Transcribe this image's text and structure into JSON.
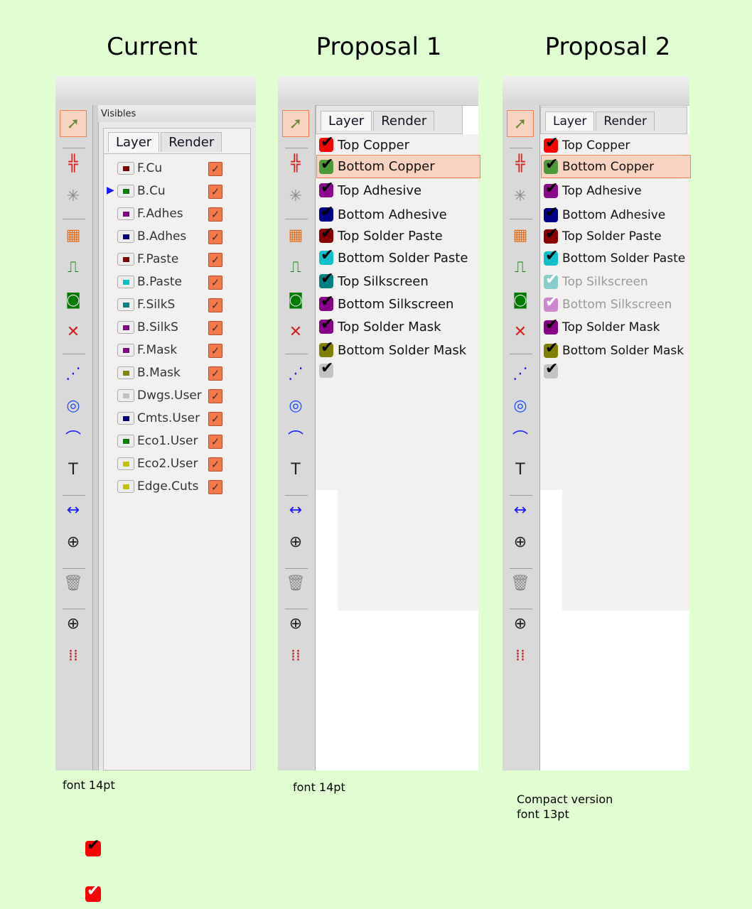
{
  "titles": [
    "Current",
    "Proposal 1",
    "Proposal 2"
  ],
  "visibles_label": "Visibles",
  "tabs": {
    "layer": "Layer",
    "render": "Render"
  },
  "current_layers": [
    {
      "name": "F.Cu",
      "color": "#840000"
    },
    {
      "name": "B.Cu",
      "color": "#008400"
    },
    {
      "name": "F.Adhes",
      "color": "#840084"
    },
    {
      "name": "B.Adhes",
      "color": "#000084"
    },
    {
      "name": "F.Paste",
      "color": "#840000"
    },
    {
      "name": "B.Paste",
      "color": "#00c2c2"
    },
    {
      "name": "F.SilkS",
      "color": "#008484"
    },
    {
      "name": "B.SilkS",
      "color": "#840084"
    },
    {
      "name": "F.Mask",
      "color": "#840084"
    },
    {
      "name": "B.Mask",
      "color": "#848400"
    },
    {
      "name": "Dwgs.User",
      "color": "#c2c2c2"
    },
    {
      "name": "Cmts.User",
      "color": "#000084"
    },
    {
      "name": "Eco1.User",
      "color": "#008400"
    },
    {
      "name": "Eco2.User",
      "color": "#c2c200"
    },
    {
      "name": "Edge.Cuts",
      "color": "#c2c200"
    }
  ],
  "current_active_layer": "B.Cu",
  "proposal1_layers": [
    {
      "name": "Top Copper",
      "color": "#ff0000"
    },
    {
      "name": "Bottom Copper",
      "color": "#4c9a3a",
      "selected": true
    },
    {
      "name": "Top Adhesive",
      "color": "#8a0a8a"
    },
    {
      "name": "Bottom Adhesive",
      "color": "#000088"
    },
    {
      "name": "Top Solder Paste",
      "color": "#880000"
    },
    {
      "name": "Bottom Solder Paste",
      "color": "#10c0c8"
    },
    {
      "name": "Top Silkscreen",
      "color": "#008080"
    },
    {
      "name": "Bottom Silkscreen",
      "color": "#880088"
    },
    {
      "name": "Top Solder Mask",
      "color": "#880088"
    },
    {
      "name": "Bottom Solder Mask",
      "color": "#808000"
    },
    {
      "name": "",
      "color": "#c4c4c4"
    }
  ],
  "proposal2_layers": [
    {
      "name": "Top Copper",
      "color": "#ff0000"
    },
    {
      "name": "Bottom Copper",
      "color": "#4c9a3a",
      "selected": true
    },
    {
      "name": "Top Adhesive",
      "color": "#8a0a8a"
    },
    {
      "name": "Bottom Adhesive",
      "color": "#000088"
    },
    {
      "name": "Top Solder Paste",
      "color": "#880000"
    },
    {
      "name": "Bottom Solder Paste",
      "color": "#10c0c8"
    },
    {
      "name": "Top Silkscreen",
      "color": "#88cccc",
      "dimmed": true
    },
    {
      "name": "Bottom Silkscreen",
      "color": "#cc88cc",
      "dimmed": true
    },
    {
      "name": "Top Solder Mask",
      "color": "#880088"
    },
    {
      "name": "Bottom Solder Mask",
      "color": "#808000"
    },
    {
      "name": "",
      "color": "#c4c4c4"
    }
  ],
  "tools": [
    {
      "icon": "select-arrow-icon",
      "glyph": "➚",
      "color": "#6a8a3a",
      "selected": true
    },
    {
      "icon": "highlight-net-icon",
      "glyph": "╬",
      "color": "#e02020"
    },
    {
      "icon": "local-ratsnest-icon",
      "glyph": "✳",
      "color": "#888"
    },
    {
      "icon": "add-footprint-icon",
      "glyph": "▦",
      "color": "#e07020"
    },
    {
      "icon": "route-track-icon",
      "glyph": "⎍",
      "color": "#007a00"
    },
    {
      "icon": "add-zone-icon",
      "glyph": "◙",
      "color": "#007a00"
    },
    {
      "icon": "add-keepout-icon",
      "glyph": "✕",
      "color": "#d02020"
    },
    {
      "icon": "add-graphic-line-icon",
      "glyph": "⋰",
      "color": "#1a1aff"
    },
    {
      "icon": "add-circle-icon",
      "glyph": "◎",
      "color": "#1a4aff"
    },
    {
      "icon": "add-arc-icon",
      "glyph": "⌒",
      "color": "#1a1aff"
    },
    {
      "icon": "add-text-icon",
      "glyph": "T",
      "color": "#222"
    },
    {
      "icon": "add-dimension-icon",
      "glyph": "↔",
      "color": "#1a1aff"
    },
    {
      "icon": "add-target-icon",
      "glyph": "⊕",
      "color": "#222"
    },
    {
      "icon": "delete-icon",
      "glyph": "🗑",
      "color": "#888"
    },
    {
      "icon": "place-origin-icon",
      "glyph": "⊕",
      "color": "#222"
    },
    {
      "icon": "grid-origin-icon",
      "glyph": "⁞⁞",
      "color": "#c02020"
    }
  ],
  "captions": [
    "font 14pt",
    "font 14pt",
    "Compact version",
    "font 13pt"
  ],
  "legend_checkboxes": [
    "checkbox-icon-variant-1",
    "checkbox-icon-variant-2"
  ]
}
